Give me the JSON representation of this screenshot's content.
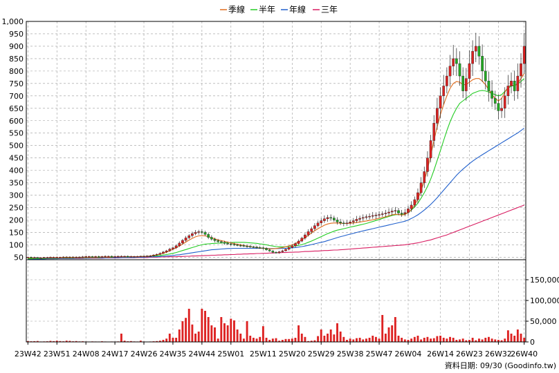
{
  "chart_data": {
    "type": "candlestick",
    "source_text": "資料日期: 09/30  (Goodinfo.tw)",
    "legend": [
      {
        "name": "季線",
        "color": "#e06a1a"
      },
      {
        "name": "半年",
        "color": "#22cc22"
      },
      {
        "name": "年線",
        "color": "#1f5fcc"
      },
      {
        "name": "三年",
        "color": "#d81b60"
      }
    ],
    "colors": {
      "up": "#dd2222",
      "down": "#22aa22",
      "volume": "#dd2222",
      "grid": "#999999"
    },
    "price_axis": {
      "ylim": [
        40,
        1000
      ],
      "ticks": [
        50,
        100,
        150,
        200,
        250,
        300,
        350,
        400,
        450,
        500,
        550,
        600,
        650,
        700,
        750,
        800,
        850,
        900,
        950,
        1000
      ],
      "tick_labels": [
        "50",
        "100",
        "150",
        "200",
        "250",
        "300",
        "350",
        "400",
        "450",
        "500",
        "550",
        "600",
        "650",
        "700",
        "750",
        "800",
        "850",
        "900",
        "950",
        "1,000"
      ]
    },
    "volume_axis": {
      "ylim": [
        0,
        195000
      ],
      "ticks": [
        0,
        50000,
        100000,
        150000
      ],
      "tick_labels": [
        "0",
        "50,000",
        "100,000",
        "150,000"
      ]
    },
    "x_axis": {
      "labels": [
        "23W42",
        "23W51",
        "24W08",
        "24W17",
        "24W26",
        "24W35",
        "24W44",
        "25W01",
        "25W11",
        "25W20",
        "25W29",
        "25W38",
        "25W47",
        "26W04",
        "26W14",
        "26W23",
        "26W32",
        "26W40"
      ],
      "label_weeks": [
        0,
        9,
        18,
        27,
        36,
        45,
        54,
        63,
        73,
        82,
        91,
        100,
        109,
        118,
        128,
        137,
        146,
        154
      ],
      "n_weeks": 155
    },
    "weeks": 155,
    "close": [
      50,
      49,
      49,
      48,
      48,
      49,
      49,
      50,
      50,
      50,
      50,
      51,
      51,
      51,
      51,
      51,
      51,
      52,
      53,
      53,
      52,
      53,
      52,
      53,
      54,
      54,
      53,
      53,
      54,
      54,
      54,
      53,
      53,
      53,
      53,
      54,
      54,
      55,
      56,
      59,
      62,
      66,
      71,
      76,
      83,
      88,
      96,
      107,
      118,
      128,
      137,
      145,
      150,
      153,
      150,
      142,
      130,
      123,
      117,
      113,
      110,
      106,
      104,
      102,
      100,
      98,
      97,
      95,
      94,
      92,
      91,
      89,
      88,
      85,
      80,
      75,
      70,
      68,
      72,
      76,
      82,
      89,
      96,
      105,
      115,
      127,
      140,
      153,
      165,
      177,
      188,
      197,
      205,
      210,
      208,
      200,
      192,
      188,
      186,
      188,
      192,
      197,
      203,
      207,
      210,
      213,
      215,
      218,
      220,
      222,
      225,
      228,
      232,
      236,
      238,
      228,
      225,
      230,
      245,
      260,
      282,
      310,
      350,
      395,
      450,
      520,
      590,
      650,
      700,
      740,
      780,
      820,
      850,
      830,
      780,
      720,
      770,
      830,
      880,
      900,
      860,
      800,
      760,
      720,
      690,
      670,
      640,
      650,
      700,
      740,
      760,
      720,
      780,
      830,
      900
    ],
    "ma_quarter": [
      47,
      47,
      47,
      47,
      47,
      47,
      47,
      47,
      47,
      47,
      47,
      48,
      48,
      48,
      48,
      48,
      48,
      49,
      49,
      49,
      49,
      49,
      50,
      50,
      50,
      50,
      51,
      51,
      51,
      51,
      52,
      52,
      52,
      52,
      52,
      53,
      53,
      54,
      55,
      57,
      59,
      62,
      66,
      70,
      76,
      82,
      88,
      95,
      103,
      111,
      119,
      126,
      132,
      136,
      137,
      136,
      133,
      129,
      124,
      120,
      117,
      114,
      111,
      108,
      105,
      102,
      100,
      97,
      95,
      93,
      91,
      89,
      87,
      86,
      85,
      84,
      84,
      85,
      87,
      89,
      92,
      96,
      100,
      105,
      112,
      120,
      129,
      138,
      148,
      157,
      165,
      172,
      179,
      184,
      187,
      188,
      188,
      187,
      186,
      186,
      187,
      188,
      190,
      192,
      194,
      196,
      198,
      201,
      204,
      207,
      210,
      213,
      217,
      221,
      223,
      222,
      220,
      222,
      230,
      242,
      260,
      285,
      318,
      358,
      405,
      460,
      520,
      575,
      625,
      665,
      700,
      730,
      750,
      758,
      755,
      745,
      745,
      755,
      765,
      770,
      770,
      760,
      745,
      725,
      705,
      690,
      680,
      690,
      715,
      735,
      745,
      740,
      750,
      770,
      790
    ],
    "ma_half": [
      44,
      44,
      45,
      45,
      45,
      45,
      46,
      46,
      46,
      46,
      47,
      47,
      47,
      47,
      47,
      48,
      48,
      48,
      48,
      49,
      49,
      49,
      49,
      50,
      50,
      50,
      50,
      51,
      51,
      51,
      51,
      52,
      52,
      52,
      52,
      53,
      53,
      53,
      54,
      55,
      56,
      57,
      59,
      61,
      63,
      66,
      69,
      73,
      77,
      81,
      85,
      89,
      93,
      97,
      100,
      103,
      104,
      105,
      106,
      107,
      107,
      108,
      109,
      109,
      110,
      110,
      110,
      110,
      109,
      108,
      107,
      106,
      104,
      102,
      100,
      97,
      95,
      93,
      92,
      92,
      92,
      93,
      94,
      96,
      98,
      101,
      105,
      110,
      115,
      121,
      127,
      133,
      139,
      145,
      150,
      155,
      159,
      162,
      165,
      168,
      171,
      174,
      177,
      180,
      183,
      186,
      190,
      194,
      198,
      202,
      206,
      210,
      214,
      218,
      221,
      222,
      222,
      224,
      230,
      240,
      252,
      268,
      288,
      310,
      335,
      365,
      400,
      440,
      480,
      520,
      560,
      595,
      625,
      650,
      670,
      680,
      690,
      700,
      710,
      715,
      720,
      722,
      720,
      715,
      710,
      705,
      700,
      705,
      718,
      730,
      740,
      742,
      748,
      758,
      770
    ],
    "ma_year": [
      42,
      42,
      43,
      43,
      43,
      43,
      44,
      44,
      44,
      44,
      45,
      45,
      45,
      45,
      45,
      46,
      46,
      46,
      46,
      46,
      47,
      47,
      47,
      47,
      47,
      48,
      48,
      48,
      48,
      48,
      49,
      49,
      49,
      49,
      50,
      50,
      50,
      51,
      51,
      52,
      52,
      53,
      54,
      55,
      56,
      57,
      59,
      60,
      62,
      64,
      66,
      68,
      70,
      72,
      74,
      76,
      78,
      80,
      81,
      82,
      83,
      84,
      85,
      85,
      86,
      86,
      86,
      86,
      86,
      86,
      86,
      86,
      86,
      86,
      86,
      85,
      85,
      85,
      85,
      86,
      86,
      87,
      88,
      89,
      91,
      93,
      95,
      98,
      101,
      104,
      107,
      110,
      113,
      117,
      121,
      125,
      129,
      133,
      136,
      140,
      143,
      146,
      150,
      153,
      156,
      159,
      162,
      165,
      168,
      171,
      174,
      177,
      180,
      183,
      186,
      189,
      192,
      195,
      200,
      206,
      213,
      221,
      230,
      240,
      251,
      263,
      276,
      290,
      305,
      320,
      335,
      350,
      365,
      380,
      393,
      405,
      416,
      427,
      437,
      446,
      455,
      463,
      471,
      479,
      487,
      495,
      503,
      511,
      519,
      527,
      535,
      543,
      551,
      560,
      570
    ],
    "ma_3yr": [
      44,
      44,
      44,
      44,
      44,
      44,
      44,
      44,
      44,
      45,
      45,
      45,
      45,
      45,
      45,
      45,
      45,
      45,
      46,
      46,
      46,
      46,
      46,
      46,
      47,
      47,
      47,
      47,
      47,
      48,
      48,
      48,
      48,
      48,
      49,
      49,
      49,
      49,
      50,
      50,
      50,
      51,
      51,
      51,
      52,
      52,
      52,
      53,
      53,
      54,
      54,
      55,
      55,
      56,
      56,
      57,
      57,
      58,
      58,
      59,
      59,
      60,
      60,
      61,
      61,
      62,
      62,
      63,
      63,
      64,
      64,
      65,
      65,
      66,
      66,
      67,
      67,
      68,
      68,
      69,
      69,
      70,
      70,
      71,
      71,
      72,
      73,
      73,
      74,
      75,
      75,
      76,
      77,
      77,
      78,
      79,
      79,
      80,
      81,
      82,
      83,
      84,
      85,
      86,
      87,
      88,
      89,
      90,
      91,
      92,
      93,
      94,
      95,
      96,
      97,
      98,
      99,
      100,
      102,
      104,
      106,
      108,
      111,
      114,
      117,
      120,
      124,
      128,
      132,
      136,
      140,
      145,
      150,
      155,
      160,
      165,
      170,
      175,
      180,
      185,
      190,
      195,
      200,
      205,
      210,
      215,
      220,
      225,
      230,
      235,
      240,
      245,
      250,
      255,
      260
    ],
    "volume": [
      2000,
      1500,
      1800,
      2200,
      1000,
      1200,
      1500,
      2500,
      1800,
      3000,
      2000,
      1500,
      3000,
      2500,
      1500,
      2000,
      1200,
      1500,
      1000,
      800,
      1200,
      1000,
      900,
      1500,
      1000,
      800,
      1000,
      900,
      1200,
      20000,
      3000,
      1500,
      2000,
      1200,
      1000,
      3000,
      1000,
      800,
      1000,
      1500,
      2000,
      3000,
      5000,
      8000,
      20000,
      10000,
      10000,
      30000,
      50000,
      58000,
      80000,
      42000,
      20000,
      25000,
      80000,
      75000,
      60000,
      40000,
      35000,
      8000,
      60000,
      45000,
      40000,
      56000,
      52000,
      30000,
      20000,
      8000,
      50000,
      15000,
      10000,
      8000,
      12000,
      38000,
      10000,
      5000,
      8000,
      9000,
      3000,
      5000,
      7000,
      7000,
      8000,
      10000,
      40000,
      20000,
      12000,
      2000,
      3000,
      4000,
      14000,
      30000,
      15000,
      20000,
      30000,
      18000,
      45000,
      25000,
      12000,
      5000,
      8000,
      6000,
      9000,
      10000,
      6000,
      8000,
      10000,
      15000,
      12000,
      8000,
      65000,
      20000,
      35000,
      40000,
      60000,
      15000,
      10000,
      6000,
      5000,
      8000,
      12000,
      15000,
      6000,
      10000,
      12000,
      8000,
      9000,
      14000,
      15000,
      10000,
      8000,
      12000,
      10000,
      5000,
      6000,
      8000,
      4000,
      5000,
      10000,
      4000,
      8000,
      6000,
      10000,
      12000,
      8000,
      6000,
      5000,
      4000,
      8000,
      28000,
      20000,
      15000,
      30000,
      20000,
      10000
    ]
  }
}
